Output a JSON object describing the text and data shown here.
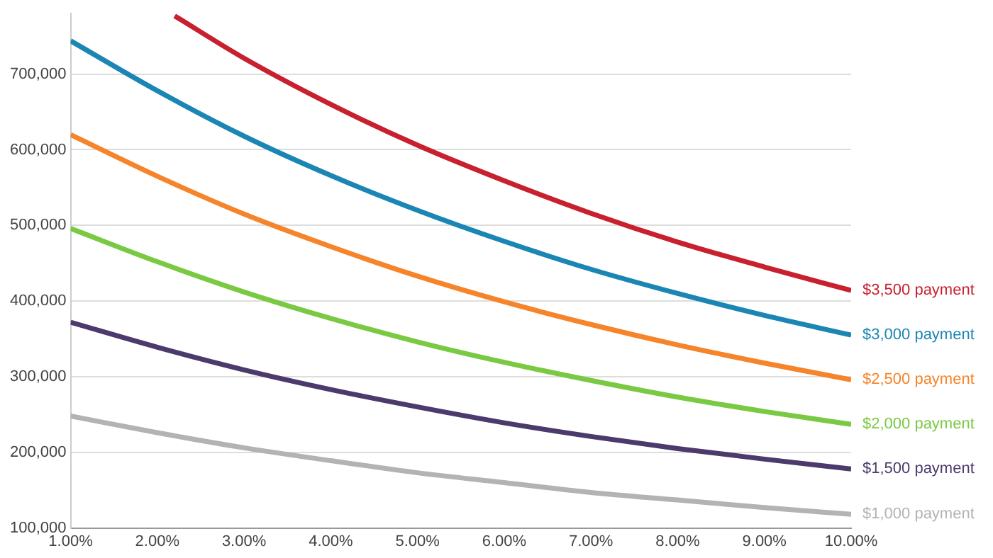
{
  "chart_data": {
    "type": "line",
    "x": [
      1,
      2,
      3,
      4,
      5,
      6,
      7,
      8,
      9,
      10
    ],
    "series": [
      {
        "name": "$3,500 payment",
        "color": "#c8202f",
        "x": [
          2.2,
          3,
          4,
          5,
          6,
          7,
          8,
          9,
          10
        ],
        "values": [
          777000,
          721000,
          660000,
          606000,
          559000,
          516000,
          478000,
          445000,
          414000
        ]
      },
      {
        "name": "$3,000 payment",
        "color": "#1b86b4",
        "values": [
          744000,
          678000,
          618000,
          566000,
          520000,
          479000,
          442000,
          410000,
          381000,
          355000
        ]
      },
      {
        "name": "$2,500 payment",
        "color": "#f5842a",
        "values": [
          620000,
          565000,
          515000,
          472000,
          433000,
          399000,
          369000,
          342000,
          318000,
          296000
        ]
      },
      {
        "name": "$2,000 payment",
        "color": "#7ac943",
        "values": [
          496000,
          452000,
          412000,
          377000,
          346000,
          319000,
          295000,
          273000,
          254000,
          237000
        ]
      },
      {
        "name": "$1,500 payment",
        "color": "#4b3a6b",
        "values": [
          372000,
          339000,
          309000,
          283000,
          260000,
          239000,
          221000,
          205000,
          191000,
          178000
        ]
      },
      {
        "name": "$1,000 payment",
        "color": "#b3b3b3",
        "values": [
          248000,
          226000,
          206000,
          189000,
          173000,
          160000,
          147000,
          137000,
          127000,
          118000
        ]
      }
    ],
    "xlim": [
      1,
      10
    ],
    "xticks": [
      {
        "value": 1,
        "label": "1.00%"
      },
      {
        "value": 2,
        "label": "2.00%"
      },
      {
        "value": 3,
        "label": "3.00%"
      },
      {
        "value": 4,
        "label": "4.00%"
      },
      {
        "value": 5,
        "label": "5.00%"
      },
      {
        "value": 6,
        "label": "6.00%"
      },
      {
        "value": 7,
        "label": "7.00%"
      },
      {
        "value": 8,
        "label": "8.00%"
      },
      {
        "value": 9,
        "label": "9.00%"
      },
      {
        "value": 10,
        "label": "10.00%"
      }
    ],
    "ylim": [
      100000,
      780000
    ],
    "yticks": [
      {
        "value": 100000,
        "label": "100,000"
      },
      {
        "value": 200000,
        "label": "200,000"
      },
      {
        "value": 300000,
        "label": "300,000"
      },
      {
        "value": 400000,
        "label": "400,000"
      },
      {
        "value": 500000,
        "label": "500,000"
      },
      {
        "value": 600000,
        "label": "600,000"
      },
      {
        "value": 700000,
        "label": "700,000"
      }
    ],
    "grid": "y",
    "legend": false,
    "marker": "none",
    "line_style": "solid"
  }
}
